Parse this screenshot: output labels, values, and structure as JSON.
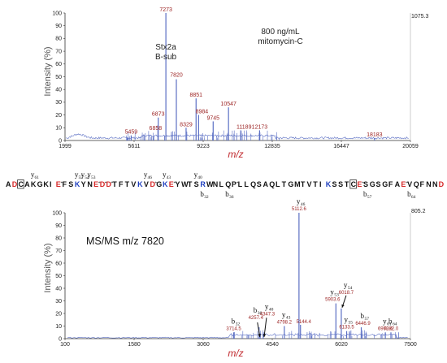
{
  "colors": {
    "spectrum": "#5b6fc4",
    "peak_label": "#9a1f1f",
    "axis_label": "#c0282d",
    "residue_red": "#d62828",
    "residue_blue": "#1f3fbf",
    "residue_black": "#111111"
  },
  "chart_data": [
    {
      "type": "line",
      "ylabel": "Intensity (%)",
      "xlabel": "m/z",
      "xlim": [
        1999,
        20059
      ],
      "ylim": [
        0,
        100
      ],
      "x_ticks": [
        "1999",
        "5611",
        "9223",
        "12835",
        "16447",
        "20059"
      ],
      "y_ticks": [
        "0",
        "10",
        "20",
        "30",
        "40",
        "50",
        "60",
        "70",
        "80",
        "90",
        "100"
      ],
      "max_intensity": "1075.3",
      "annotation_lines": [
        "800 ng/mL",
        "mitomycin-C"
      ],
      "protein_labels": [
        "Stx2a",
        "B-sub"
      ],
      "peaks": [
        {
          "x": 5459,
          "y": 4,
          "label": "5459"
        },
        {
          "x": 6858,
          "y": 12,
          "label": "6858"
        },
        {
          "x": 6873,
          "y": 18,
          "label": "6873"
        },
        {
          "x": 7273,
          "y": 100,
          "label": "7273"
        },
        {
          "x": 7820,
          "y": 48,
          "label": "7820"
        },
        {
          "x": 8329,
          "y": 10,
          "label": "8329"
        },
        {
          "x": 8851,
          "y": 33,
          "label": "8851"
        },
        {
          "x": 8984,
          "y": 20,
          "label": "8984"
        },
        {
          "x": 9745,
          "y": 15,
          "label": "9745"
        },
        {
          "x": 10547,
          "y": 26,
          "label": "10547"
        },
        {
          "x": 11189,
          "y": 8,
          "label": "11189"
        },
        {
          "x": 12173,
          "y": 8,
          "label": "12173"
        },
        {
          "x": 18183,
          "y": 2,
          "label": "18183"
        }
      ]
    },
    {
      "type": "line",
      "ylabel": "Intensity (%)",
      "xlabel": "m/z",
      "xlim": [
        100,
        7500
      ],
      "ylim": [
        0,
        100
      ],
      "x_ticks": [
        "100",
        "1580",
        "3060",
        "4540",
        "6020",
        "7500"
      ],
      "y_ticks": [
        "0",
        "10",
        "20",
        "30",
        "40",
        "50",
        "60",
        "70",
        "80",
        "90",
        "100"
      ],
      "max_intensity": "805.2",
      "annotation": "MS/MS m/z 7820",
      "ions": [
        {
          "x": 3714.5,
          "y": 5,
          "ion": "b",
          "num": "32",
          "mz": "3714.5"
        },
        {
          "x": 4257.4,
          "y": 9,
          "ion": "b",
          "num": "36",
          "mz": "4257.4"
        },
        {
          "x": 4347.3,
          "y": 5,
          "ion": "y",
          "num": "40",
          "mz": "4347.3"
        },
        {
          "x": 4798.2,
          "y": 10,
          "ion": "y",
          "num": "43",
          "mz": "4798.2"
        },
        {
          "x": 5112.6,
          "y": 100,
          "ion": "y",
          "num": "46",
          "mz": "5112.6"
        },
        {
          "x": 5144.4,
          "y": 11,
          "ion": "",
          "num": "",
          "mz": "5144.4"
        },
        {
          "x": 5903.6,
          "y": 28,
          "ion": "y",
          "num": "53",
          "mz": "5903.6"
        },
        {
          "x": 6018.7,
          "y": 24,
          "ion": "y",
          "num": "54",
          "mz": "6018.7"
        },
        {
          "x": 6133.5,
          "y": 6,
          "ion": "y",
          "num": "55",
          "mz": "6133.5"
        },
        {
          "x": 6446.9,
          "y": 9,
          "ion": "b",
          "num": "57",
          "mz": "6446.9"
        },
        {
          "x": 6962.6,
          "y": 5,
          "ion": "y",
          "num": "61",
          "mz": "6962.6"
        },
        {
          "x": 7082.0,
          "y": 5,
          "ion": "b",
          "num": "64",
          "mz": "7082.0"
        }
      ]
    }
  ],
  "sequence": {
    "residues": [
      {
        "c": "A",
        "col": "k"
      },
      {
        "c": "D",
        "col": "r"
      },
      {
        "c": "C",
        "col": "k",
        "box": true
      },
      {
        "c": "A",
        "col": "k"
      },
      {
        "c": "K",
        "col": "k"
      },
      {
        "c": "G",
        "col": "k"
      },
      {
        "c": "K",
        "col": "k"
      },
      {
        "c": "I",
        "col": "k"
      },
      {
        "c": "E",
        "col": "r",
        "s": true
      },
      {
        "c": "F",
        "col": "k"
      },
      {
        "c": "S",
        "col": "k"
      },
      {
        "c": "K",
        "col": "b"
      },
      {
        "c": "Y",
        "col": "k"
      },
      {
        "c": "N",
        "col": "k"
      },
      {
        "c": "E",
        "col": "r",
        "s": true
      },
      {
        "c": "D",
        "col": "r",
        "s": true
      },
      {
        "c": "D",
        "col": "r",
        "s": true
      },
      {
        "c": "T",
        "col": "k"
      },
      {
        "c": "F",
        "col": "k"
      },
      {
        "c": "T",
        "col": "k"
      },
      {
        "c": "V",
        "col": "k"
      },
      {
        "c": "K",
        "col": "b"
      },
      {
        "c": "V",
        "col": "k"
      },
      {
        "c": "D",
        "col": "r",
        "s": true
      },
      {
        "c": "G",
        "col": "k"
      },
      {
        "c": "K",
        "col": "b"
      },
      {
        "c": "E",
        "col": "r",
        "s": true
      },
      {
        "c": "Y",
        "col": "k"
      },
      {
        "c": "W",
        "col": "k"
      },
      {
        "c": "T",
        "col": "k"
      },
      {
        "c": "S",
        "col": "k"
      },
      {
        "c": "R",
        "col": "b"
      },
      {
        "c": "W",
        "col": "k"
      },
      {
        "c": "N",
        "col": "k"
      },
      {
        "c": "L",
        "col": "k"
      },
      {
        "c": "Q",
        "col": "k"
      },
      {
        "c": "P",
        "col": "k",
        "star": true
      },
      {
        "c": "L",
        "col": "k"
      },
      {
        "c": "L",
        "col": "k"
      },
      {
        "c": "Q",
        "col": "k"
      },
      {
        "c": "S",
        "col": "k"
      },
      {
        "c": "A",
        "col": "k"
      },
      {
        "c": "Q",
        "col": "k"
      },
      {
        "c": "L",
        "col": "k"
      },
      {
        "c": "T",
        "col": "k"
      },
      {
        "c": "G",
        "col": "k"
      },
      {
        "c": "M",
        "col": "k"
      },
      {
        "c": "T",
        "col": "k"
      },
      {
        "c": "V",
        "col": "k"
      },
      {
        "c": "T",
        "col": "k"
      },
      {
        "c": "I",
        "col": "k"
      },
      {
        "c": "K",
        "col": "b"
      },
      {
        "c": "S",
        "col": "k"
      },
      {
        "c": "S",
        "col": "k"
      },
      {
        "c": "T",
        "col": "k"
      },
      {
        "c": "C",
        "col": "k",
        "box": true
      },
      {
        "c": "E",
        "col": "r",
        "s": true
      },
      {
        "c": "S",
        "col": "k"
      },
      {
        "c": "G",
        "col": "k"
      },
      {
        "c": "S",
        "col": "k"
      },
      {
        "c": "G",
        "col": "k"
      },
      {
        "c": "F",
        "col": "k"
      },
      {
        "c": "A",
        "col": "k"
      },
      {
        "c": "E",
        "col": "r",
        "s": true
      },
      {
        "c": "V",
        "col": "k"
      },
      {
        "c": "Q",
        "col": "k"
      },
      {
        "c": "F",
        "col": "k"
      },
      {
        "c": "N",
        "col": "k"
      },
      {
        "c": "N",
        "col": "k"
      },
      {
        "c": "D",
        "col": "r"
      }
    ],
    "y_ions": [
      {
        "label": "y",
        "num": "61",
        "at": 4
      },
      {
        "label": "y",
        "num": "55",
        "at": 11
      },
      {
        "label": "y",
        "num": "54",
        "at": 12
      },
      {
        "label": "y",
        "num": "53",
        "at": 13
      },
      {
        "label": "y",
        "num": "46",
        "at": 22
      },
      {
        "label": "y",
        "num": "43",
        "at": 25
      },
      {
        "label": "y",
        "num": "40",
        "at": 30
      }
    ],
    "b_ions": [
      {
        "label": "b",
        "num": "32",
        "at": 31
      },
      {
        "label": "b",
        "num": "36",
        "at": 35
      },
      {
        "label": "b",
        "num": "57",
        "at": 57
      },
      {
        "label": "b",
        "num": "64",
        "at": 64
      }
    ]
  }
}
